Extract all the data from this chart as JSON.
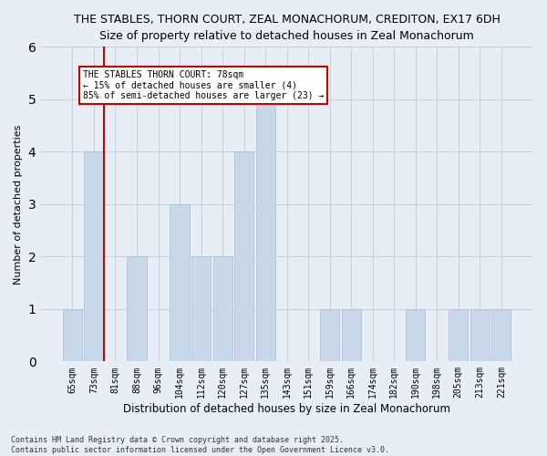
{
  "title1": "THE STABLES, THORN COURT, ZEAL MONACHORUM, CREDITON, EX17 6DH",
  "title2": "Size of property relative to detached houses in Zeal Monachorum",
  "xlabel": "Distribution of detached houses by size in Zeal Monachorum",
  "ylabel": "Number of detached properties",
  "categories": [
    "65sqm",
    "73sqm",
    "81sqm",
    "88sqm",
    "96sqm",
    "104sqm",
    "112sqm",
    "120sqm",
    "127sqm",
    "135sqm",
    "143sqm",
    "151sqm",
    "159sqm",
    "166sqm",
    "174sqm",
    "182sqm",
    "190sqm",
    "198sqm",
    "205sqm",
    "213sqm",
    "221sqm"
  ],
  "values": [
    1,
    4,
    0,
    2,
    0,
    3,
    2,
    2,
    4,
    5,
    0,
    0,
    1,
    1,
    0,
    0,
    1,
    0,
    1,
    1,
    1
  ],
  "bar_color": "#c8d8ea",
  "bar_edgecolor": "#a8bece",
  "grid_color": "#c8d0dc",
  "subject_line_index": 1,
  "subject_line_color": "#cc0000",
  "annotation_text": "THE STABLES THORN COURT: 78sqm\n← 15% of detached houses are smaller (4)\n85% of semi-detached houses are larger (23) →",
  "annotation_box_edgecolor": "#cc0000",
  "ylim": [
    0,
    6
  ],
  "yticks": [
    0,
    1,
    2,
    3,
    4,
    5,
    6
  ],
  "footer": "Contains HM Land Registry data © Crown copyright and database right 2025.\nContains public sector information licensed under the Open Government Licence v3.0.",
  "bg_color": "#e8eef6",
  "plot_bg_color": "#e8eef6",
  "title1_fontsize": 9,
  "title2_fontsize": 9,
  "ylabel_fontsize": 8,
  "xlabel_fontsize": 8.5,
  "tick_fontsize": 7,
  "annotation_fontsize": 7,
  "footer_fontsize": 6
}
